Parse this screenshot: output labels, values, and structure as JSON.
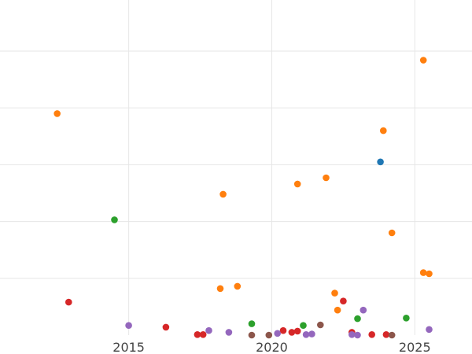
{
  "chart_data": {
    "type": "scatter",
    "title": "",
    "xlabel": "",
    "ylabel": "",
    "xlim": [
      2010.5,
      2027.0
    ],
    "ylim": [
      0,
      5.9
    ],
    "x_ticks": [
      2015,
      2020,
      2025
    ],
    "x_tick_labels": [
      "2015",
      "2020",
      "2025"
    ],
    "y_gridlines": [
      1,
      2,
      3,
      4,
      5
    ],
    "grid": true,
    "legend": "none",
    "series": [
      {
        "color": "#1f77b4",
        "points": [
          {
            "x": 2023.8,
            "y": 3.05
          }
        ]
      },
      {
        "color": "#ff7f0e",
        "points": [
          {
            "x": 2012.5,
            "y": 3.9
          },
          {
            "x": 2018.2,
            "y": 0.82
          },
          {
            "x": 2018.3,
            "y": 2.48
          },
          {
            "x": 2018.8,
            "y": 0.86
          },
          {
            "x": 2020.9,
            "y": 2.66
          },
          {
            "x": 2021.9,
            "y": 2.77
          },
          {
            "x": 2022.2,
            "y": 0.74
          },
          {
            "x": 2022.3,
            "y": 0.44
          },
          {
            "x": 2023.9,
            "y": 3.6
          },
          {
            "x": 2024.2,
            "y": 1.8
          },
          {
            "x": 2025.3,
            "y": 4.84
          },
          {
            "x": 2025.3,
            "y": 1.1
          },
          {
            "x": 2025.5,
            "y": 1.08
          }
        ]
      },
      {
        "color": "#2ca02c",
        "points": [
          {
            "x": 2014.5,
            "y": 2.03
          },
          {
            "x": 2019.3,
            "y": 0.2
          },
          {
            "x": 2021.1,
            "y": 0.17
          },
          {
            "x": 2023.0,
            "y": 0.29
          },
          {
            "x": 2024.7,
            "y": 0.3
          }
        ]
      },
      {
        "color": "#d62728",
        "points": [
          {
            "x": 2012.9,
            "y": 0.58
          },
          {
            "x": 2016.3,
            "y": 0.14
          },
          {
            "x": 2017.4,
            "y": 0.01
          },
          {
            "x": 2017.6,
            "y": 0.01
          },
          {
            "x": 2020.4,
            "y": 0.08
          },
          {
            "x": 2020.7,
            "y": 0.05
          },
          {
            "x": 2020.9,
            "y": 0.07
          },
          {
            "x": 2022.5,
            "y": 0.6
          },
          {
            "x": 2022.8,
            "y": 0.05
          },
          {
            "x": 2023.5,
            "y": 0.01
          },
          {
            "x": 2024.0,
            "y": 0.01
          }
        ]
      },
      {
        "color": "#9467bd",
        "points": [
          {
            "x": 2015.0,
            "y": 0.17
          },
          {
            "x": 2017.8,
            "y": 0.08
          },
          {
            "x": 2018.5,
            "y": 0.05
          },
          {
            "x": 2020.2,
            "y": 0.03
          },
          {
            "x": 2021.2,
            "y": 0.01
          },
          {
            "x": 2021.4,
            "y": 0.02
          },
          {
            "x": 2022.8,
            "y": 0.01
          },
          {
            "x": 2023.0,
            "y": 0.0
          },
          {
            "x": 2023.2,
            "y": 0.44
          },
          {
            "x": 2025.5,
            "y": 0.1
          }
        ]
      },
      {
        "color": "#8c564b",
        "points": [
          {
            "x": 2019.3,
            "y": 0.0
          },
          {
            "x": 2019.9,
            "y": 0.0
          },
          {
            "x": 2021.7,
            "y": 0.18
          },
          {
            "x": 2024.2,
            "y": 0.0
          }
        ]
      }
    ]
  }
}
